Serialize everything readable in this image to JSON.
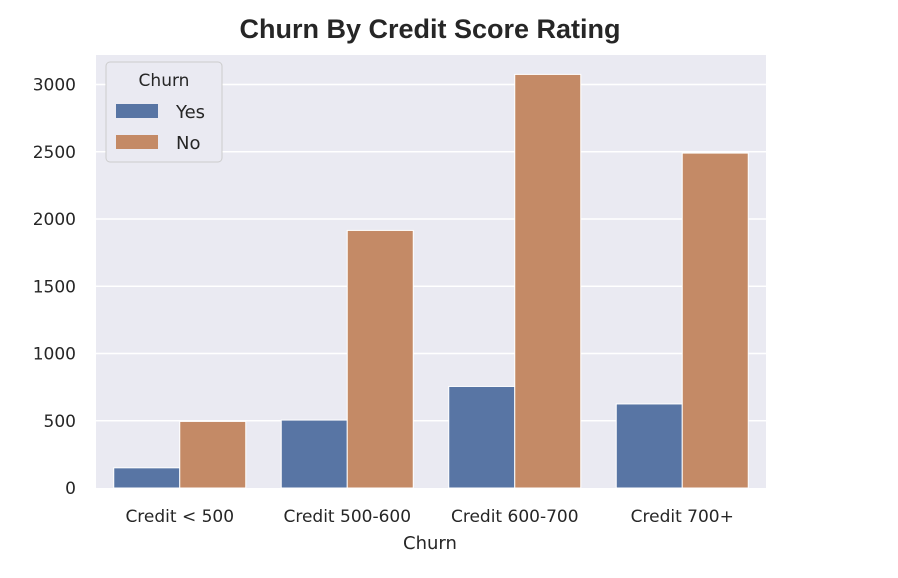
{
  "chart_data": {
    "type": "bar",
    "title": "Churn By Credit Score Rating",
    "xlabel": "Churn",
    "ylabel": "",
    "categories": [
      "Credit < 500",
      "Credit 500-600",
      "Credit 600-700",
      "Credit 700+"
    ],
    "series": [
      {
        "name": "Yes",
        "color": "#5875a4",
        "values": [
          150,
          505,
          755,
          625
        ]
      },
      {
        "name": "No",
        "color": "#c48a66",
        "values": [
          495,
          1915,
          3075,
          2490
        ]
      }
    ],
    "ylim": [
      0,
      3200
    ],
    "yticks": [
      0,
      500,
      1000,
      1500,
      2000,
      2500,
      3000
    ],
    "grid": true,
    "legend": {
      "title": "Churn",
      "placement": "top-left"
    },
    "plot_background": "#eaeaf2"
  }
}
